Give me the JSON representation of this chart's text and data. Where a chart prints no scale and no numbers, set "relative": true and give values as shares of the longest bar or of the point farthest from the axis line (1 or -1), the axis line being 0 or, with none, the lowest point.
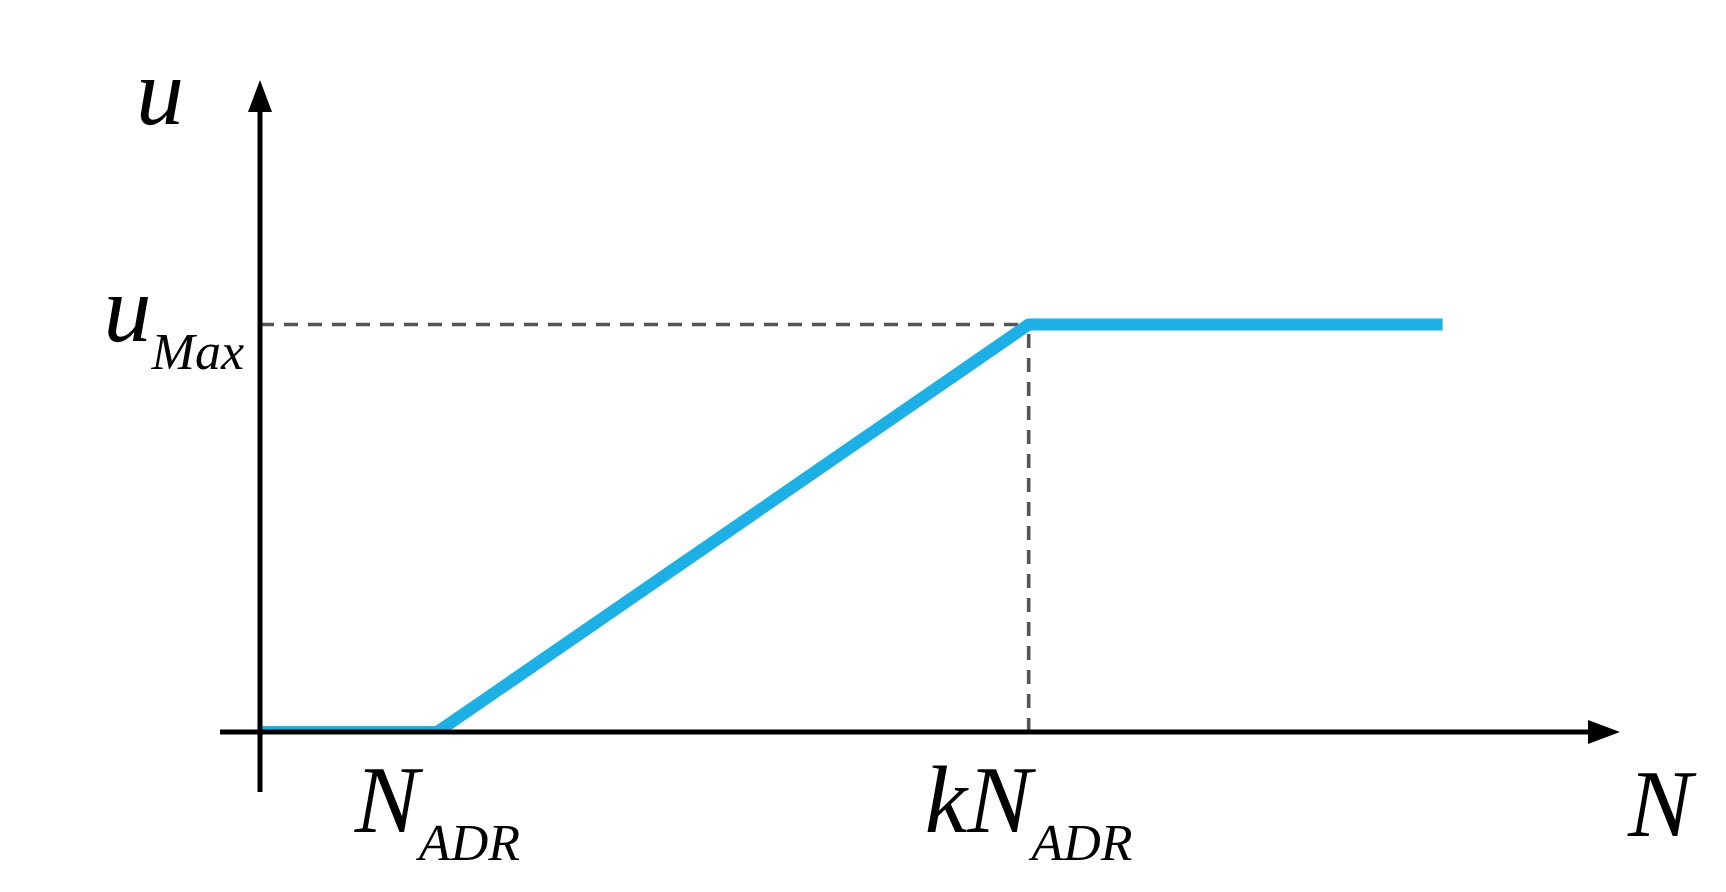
{
  "chart_data": {
    "type": "line",
    "relative": true,
    "xlabel": "N",
    "ylabel": "u",
    "categories": [
      null,
      null,
      null,
      "N$_{ADR}$",
      null,
      null,
      null,
      null,
      null,
      null,
      null,
      null,
      null,
      "kN$_{ADR}$",
      null,
      null,
      null,
      null,
      null,
      null,
      null,
      null,
      null,
      null
    ],
    "series": [
      {
        "color": "#1bb0e6",
        "values": [
          0,
          null,
          null,
          0,
          null,
          null,
          null,
          null,
          null,
          null,
          null,
          null,
          null,
          1,
          null,
          null,
          null,
          null,
          null,
          null,
          1,
          null,
          null,
          null
        ]
      }
    ],
    "ref_lines": [
      {
        "axis": "y",
        "value": 1,
        "label": "u$_{Max}$",
        "line_style": "dashed",
        "color": "#555555"
      },
      {
        "axis": "x",
        "value": "kN$_{ADR}$",
        "line_style": "dashed",
        "color": "#555555"
      }
    ],
    "marker": "none",
    "line_style": "solid",
    "legend": false
  }
}
